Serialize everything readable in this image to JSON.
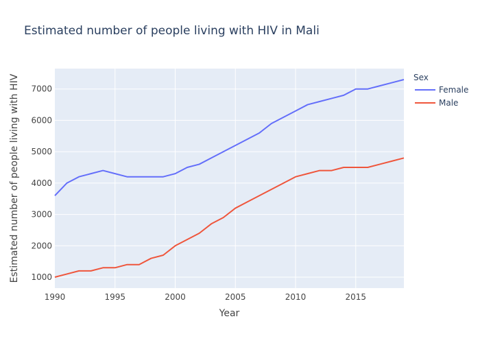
{
  "chart_data": {
    "type": "line",
    "title": "Estimated number of people living with HIV in Mali",
    "xlabel": "Year",
    "ylabel": "Estimated number of people living with HIV",
    "xlim": [
      1990,
      2019
    ],
    "ylim": [
      650,
      7650
    ],
    "x_ticks": [
      1990,
      1995,
      2000,
      2005,
      2010,
      2015
    ],
    "y_ticks": [
      1000,
      2000,
      3000,
      4000,
      5000,
      6000,
      7000
    ],
    "grid": true,
    "legend": {
      "title": "Sex",
      "placement": "right"
    },
    "x": [
      1990,
      1991,
      1992,
      1993,
      1994,
      1995,
      1996,
      1997,
      1998,
      1999,
      2000,
      2001,
      2002,
      2003,
      2004,
      2005,
      2006,
      2007,
      2008,
      2009,
      2010,
      2011,
      2012,
      2013,
      2014,
      2015,
      2016,
      2017,
      2018,
      2019
    ],
    "series": [
      {
        "name": "Female",
        "color": "#636efa",
        "values": [
          3600,
          4000,
          4200,
          4300,
          4400,
          4300,
          4200,
          4200,
          4200,
          4200,
          4300,
          4500,
          4600,
          4800,
          5000,
          5200,
          5400,
          5600,
          5900,
          6100,
          6300,
          6500,
          6600,
          6700,
          6800,
          7000,
          7000,
          7100,
          7200,
          7300
        ]
      },
      {
        "name": "Male",
        "color": "#ef553b",
        "values": [
          1000,
          1100,
          1200,
          1200,
          1300,
          1300,
          1400,
          1400,
          1600,
          1700,
          2000,
          2200,
          2400,
          2700,
          2900,
          3200,
          3400,
          3600,
          3800,
          4000,
          4200,
          4300,
          4400,
          4400,
          4500,
          4500,
          4500,
          4600,
          4700,
          4800
        ]
      }
    ]
  },
  "colors": {
    "plot_bg": "#e5ecf6",
    "grid": "#ffffff"
  }
}
